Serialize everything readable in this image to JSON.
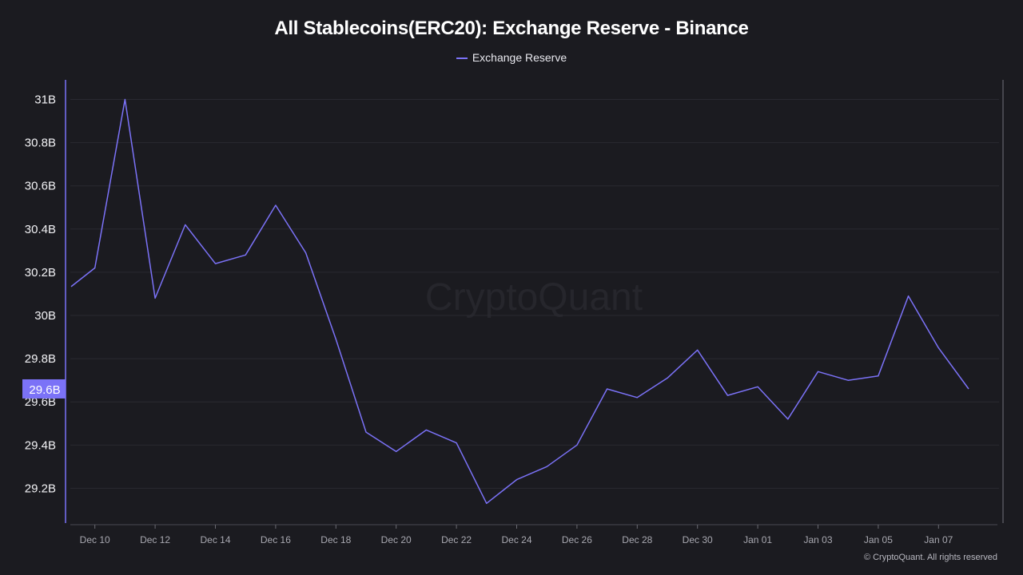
{
  "chart_data": {
    "type": "line",
    "title": "All Stablecoins(ERC20): Exchange Reserve - Binance",
    "legend": {
      "entries": [
        "Exchange Reserve"
      ],
      "placement": "top-center"
    },
    "xlabel": "",
    "ylabel": "",
    "x_tick_labels": [
      "Dec 10",
      "Dec 12",
      "Dec 14",
      "Dec 16",
      "Dec 18",
      "Dec 20",
      "Dec 22",
      "Dec 24",
      "Dec 26",
      "Dec 28",
      "Dec 30",
      "Jan 01",
      "Jan 03",
      "Jan 05",
      "Jan 07"
    ],
    "y_tick_labels": [
      "29.2B",
      "29.4B",
      "29.6B",
      "29.8B",
      "30B",
      "30.2B",
      "30.4B",
      "30.6B",
      "30.8B",
      "31B"
    ],
    "y_ticks": [
      29.2,
      29.4,
      29.6,
      29.8,
      30.0,
      30.2,
      30.4,
      30.6,
      30.8,
      31.0
    ],
    "ylim": [
      29.0,
      31.1
    ],
    "grid": true,
    "current_value_label": "29.6B",
    "series": [
      {
        "name": "Exchange Reserve",
        "color": "#7b72f7",
        "x": [
          "Dec 09",
          "Dec 10",
          "Dec 11",
          "Dec 12",
          "Dec 13",
          "Dec 14",
          "Dec 15",
          "Dec 16",
          "Dec 17",
          "Dec 18",
          "Dec 19",
          "Dec 20",
          "Dec 21",
          "Dec 22",
          "Dec 23",
          "Dec 24",
          "Dec 25",
          "Dec 26",
          "Dec 27",
          "Dec 28",
          "Dec 29",
          "Dec 30",
          "Dec 31",
          "Jan 01",
          "Jan 02",
          "Jan 03",
          "Jan 04",
          "Jan 05",
          "Jan 06",
          "Jan 07",
          "Jan 08"
        ],
        "values": [
          30.11,
          30.22,
          31.0,
          30.08,
          30.42,
          30.24,
          30.28,
          30.51,
          30.29,
          29.89,
          29.46,
          29.37,
          29.47,
          29.41,
          29.13,
          29.24,
          29.3,
          29.4,
          29.66,
          29.62,
          29.71,
          29.84,
          29.63,
          29.67,
          29.52,
          29.74,
          29.7,
          29.72,
          30.09,
          29.85,
          29.66
        ]
      }
    ]
  },
  "watermark": "CryptoQuant",
  "copyright": "© CryptoQuant. All rights reserved"
}
